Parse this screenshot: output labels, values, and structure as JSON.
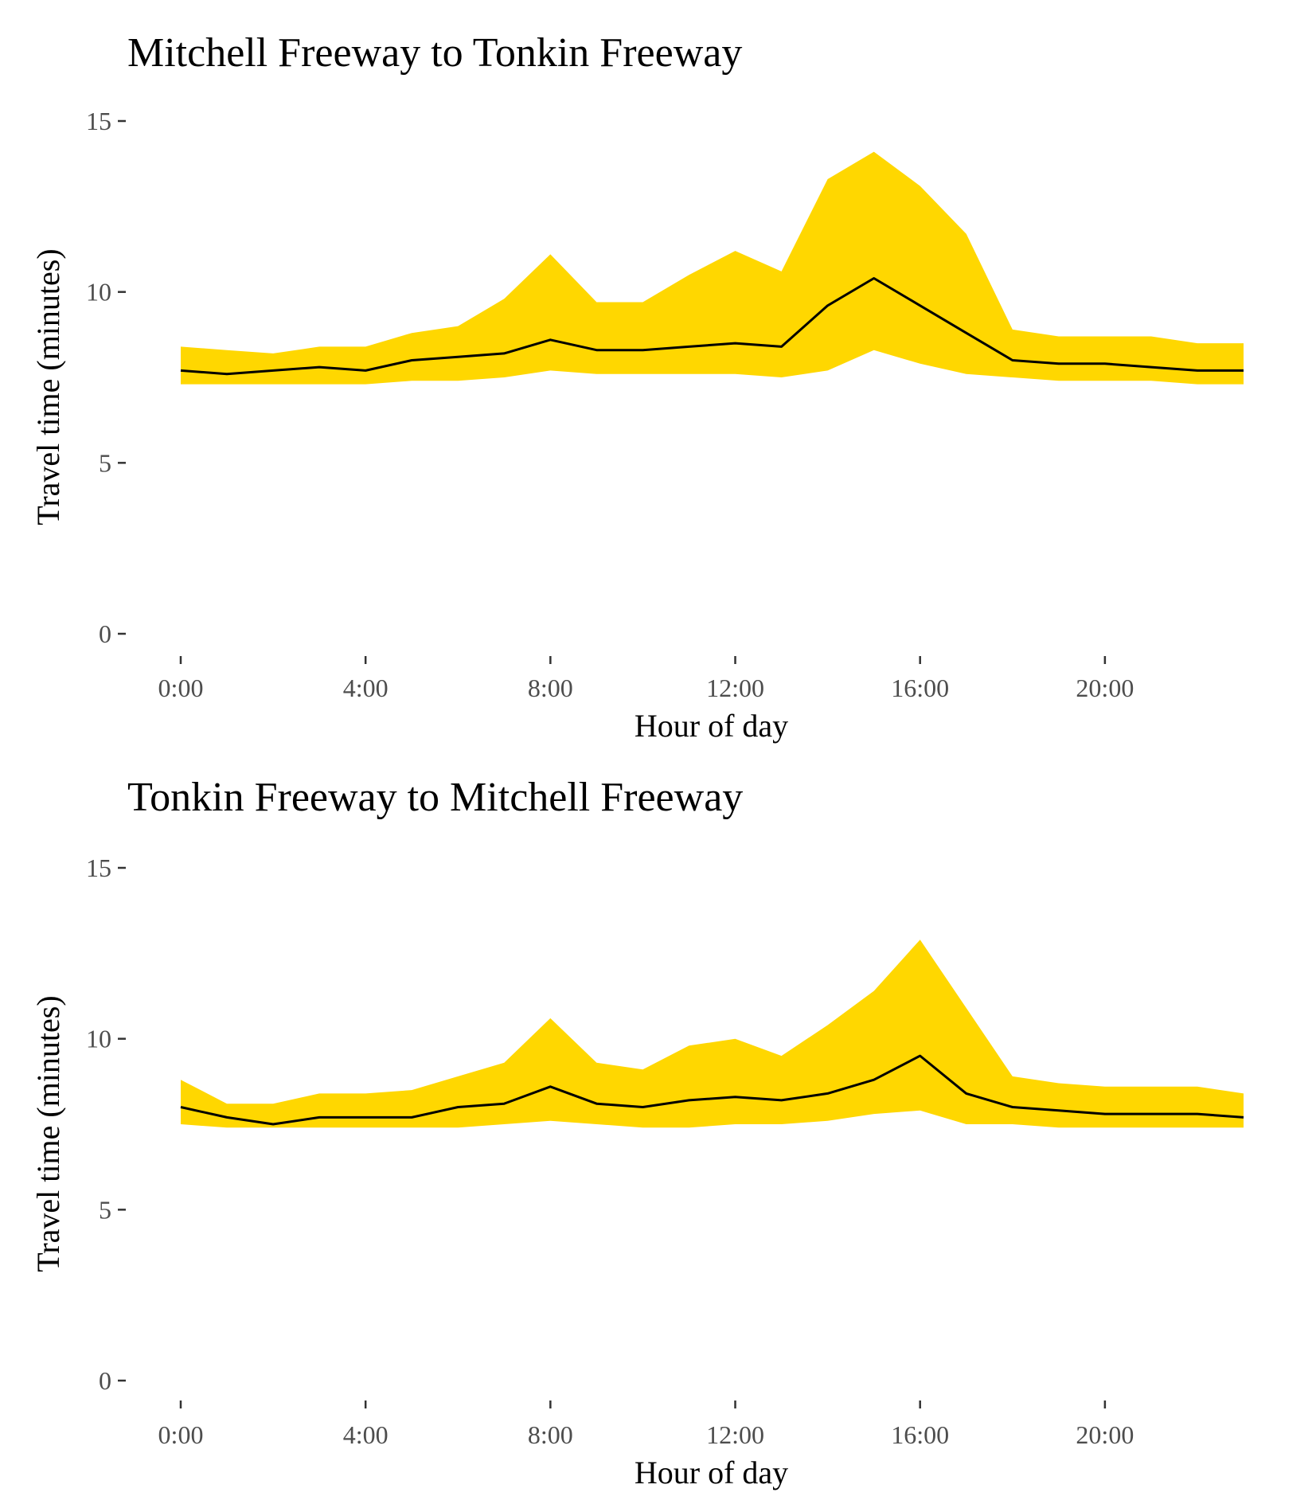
{
  "colors": {
    "band": "#FFD700",
    "line": "#000000"
  },
  "chart_data": [
    {
      "type": "area",
      "title": "Mitchell Freeway to Tonkin Freeway",
      "xlabel": "Hour of day",
      "ylabel": "Travel time (minutes)",
      "ylim": [
        0,
        15
      ],
      "yticks": [
        0,
        5,
        10,
        15
      ],
      "xlim": [
        0,
        23
      ],
      "xticks": [
        0,
        4,
        8,
        12,
        16,
        20
      ],
      "xtick_labels": [
        "0:00",
        "4:00",
        "8:00",
        "12:00",
        "16:00",
        "20:00"
      ],
      "grid": false,
      "x": [
        0,
        1,
        2,
        3,
        4,
        5,
        6,
        7,
        8,
        9,
        10,
        11,
        12,
        13,
        14,
        15,
        16,
        17,
        18,
        19,
        20,
        21,
        22,
        23
      ],
      "series": [
        {
          "role": "band_upper",
          "values": [
            8.4,
            8.3,
            8.2,
            8.4,
            8.4,
            8.8,
            9.0,
            9.8,
            11.1,
            9.7,
            9.7,
            10.5,
            11.2,
            10.6,
            13.3,
            14.1,
            13.1,
            11.7,
            8.9,
            8.7,
            8.7,
            8.7,
            8.5,
            8.5
          ]
        },
        {
          "role": "median",
          "values": [
            7.7,
            7.6,
            7.7,
            7.8,
            7.7,
            8.0,
            8.1,
            8.2,
            8.6,
            8.3,
            8.3,
            8.4,
            8.5,
            8.4,
            9.6,
            10.4,
            9.6,
            8.8,
            8.0,
            7.9,
            7.9,
            7.8,
            7.7,
            7.7
          ]
        },
        {
          "role": "band_lower",
          "values": [
            7.3,
            7.3,
            7.3,
            7.3,
            7.3,
            7.4,
            7.4,
            7.5,
            7.7,
            7.6,
            7.6,
            7.6,
            7.6,
            7.5,
            7.7,
            8.3,
            7.9,
            7.6,
            7.5,
            7.4,
            7.4,
            7.4,
            7.3,
            7.3
          ]
        }
      ]
    },
    {
      "type": "area",
      "title": "Tonkin Freeway to Mitchell Freeway",
      "xlabel": "Hour of day",
      "ylabel": "Travel time (minutes)",
      "ylim": [
        0,
        15
      ],
      "yticks": [
        0,
        5,
        10,
        15
      ],
      "xlim": [
        0,
        23
      ],
      "xticks": [
        0,
        4,
        8,
        12,
        16,
        20
      ],
      "xtick_labels": [
        "0:00",
        "4:00",
        "8:00",
        "12:00",
        "16:00",
        "20:00"
      ],
      "grid": false,
      "x": [
        0,
        1,
        2,
        3,
        4,
        5,
        6,
        7,
        8,
        9,
        10,
        11,
        12,
        13,
        14,
        15,
        16,
        17,
        18,
        19,
        20,
        21,
        22,
        23
      ],
      "series": [
        {
          "role": "band_upper",
          "values": [
            8.8,
            8.1,
            8.1,
            8.4,
            8.4,
            8.5,
            8.9,
            9.3,
            10.6,
            9.3,
            9.1,
            9.8,
            10.0,
            9.5,
            10.4,
            11.4,
            12.9,
            10.9,
            8.9,
            8.7,
            8.6,
            8.6,
            8.6,
            8.4
          ]
        },
        {
          "role": "median",
          "values": [
            8.0,
            7.7,
            7.5,
            7.7,
            7.7,
            7.7,
            8.0,
            8.1,
            8.6,
            8.1,
            8.0,
            8.2,
            8.3,
            8.2,
            8.4,
            8.8,
            9.5,
            8.4,
            8.0,
            7.9,
            7.8,
            7.8,
            7.8,
            7.7
          ]
        },
        {
          "role": "band_lower",
          "values": [
            7.5,
            7.4,
            7.4,
            7.4,
            7.4,
            7.4,
            7.4,
            7.5,
            7.6,
            7.5,
            7.4,
            7.4,
            7.5,
            7.5,
            7.6,
            7.8,
            7.9,
            7.5,
            7.5,
            7.4,
            7.4,
            7.4,
            7.4,
            7.4
          ]
        }
      ]
    }
  ]
}
